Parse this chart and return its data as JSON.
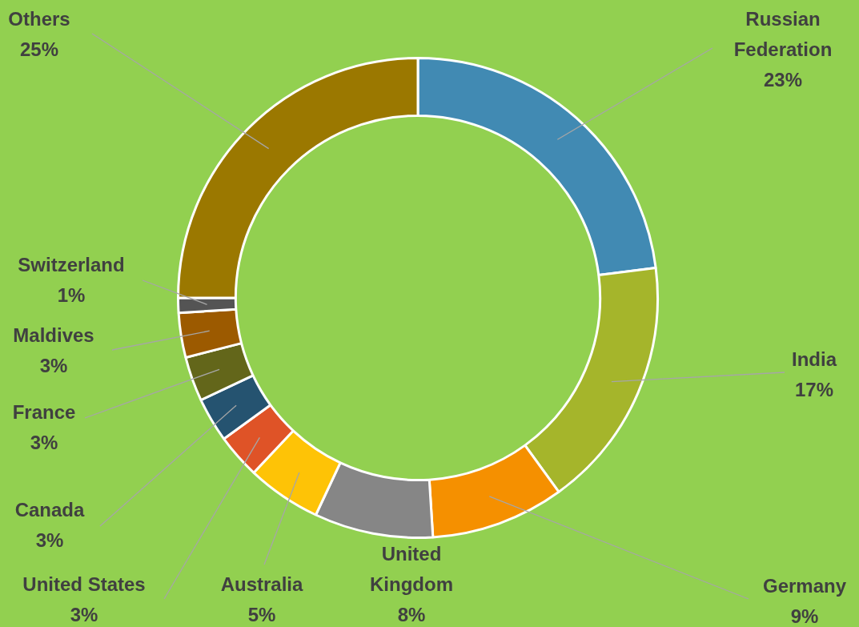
{
  "chart_data": {
    "type": "donut",
    "categories": [
      "Russian Federation",
      "India",
      "Germany",
      "United Kingdom",
      "Australia",
      "United States",
      "Canada",
      "France",
      "Maldives",
      "Switzerland",
      "Others"
    ],
    "values": [
      23,
      17,
      9,
      8,
      5,
      3,
      3,
      3,
      3,
      1,
      25
    ],
    "value_labels": [
      "23%",
      "17%",
      "9%",
      "8%",
      "5%",
      "3%",
      "3%",
      "3%",
      "3%",
      "1%",
      "25%"
    ],
    "colors": [
      "#418ab3",
      "#a5b52b",
      "#f59000",
      "#868686",
      "#fec306",
      "#df5327",
      "#255370",
      "#63661a",
      "#9c5a00",
      "#545454",
      "#9b7800"
    ],
    "legend": false
  }
}
